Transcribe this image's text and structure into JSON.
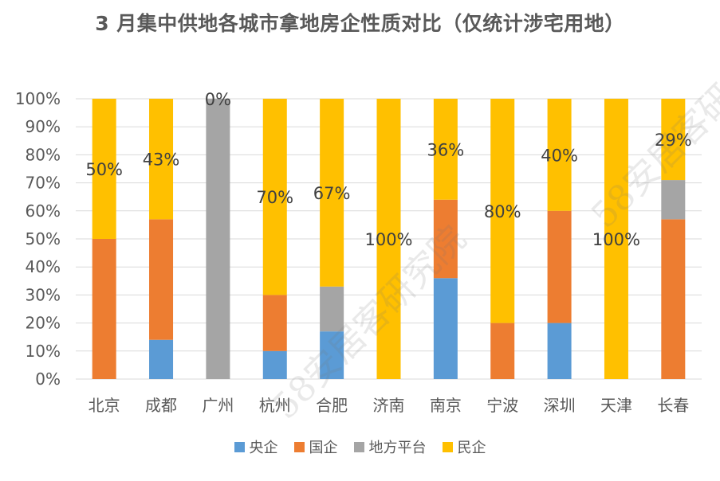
{
  "title": "3 月集中供地各城市拿地房企性质对比（仅统计涉宅用地）",
  "watermark": "58安居客研究院",
  "colors": {
    "central_soe": "#5B9BD5",
    "state_owned": "#ED7D31",
    "local_platform": "#A5A5A5",
    "private": "#FFC000",
    "axis_text": "#595959",
    "grid": "#D9D9D9"
  },
  "legend": [
    {
      "label": "央企",
      "color": "#5B9BD5"
    },
    {
      "label": "国企",
      "color": "#ED7D31"
    },
    {
      "label": "地方平台",
      "color": "#A5A5A5"
    },
    {
      "label": "民企",
      "color": "#FFC000"
    }
  ],
  "chart_data": {
    "type": "bar",
    "stacked": true,
    "categories": [
      "北京",
      "成都",
      "广州",
      "杭州",
      "合肥",
      "济南",
      "南京",
      "宁波",
      "深圳",
      "天津",
      "长春"
    ],
    "series": [
      {
        "name": "央企",
        "color": "#5B9BD5",
        "values": [
          0,
          14,
          0,
          10,
          17,
          0,
          36,
          0,
          20,
          0,
          0
        ]
      },
      {
        "name": "国企",
        "color": "#ED7D31",
        "values": [
          50,
          43,
          0,
          20,
          0,
          0,
          28,
          20,
          40,
          0,
          57
        ]
      },
      {
        "name": "地方平台",
        "color": "#A5A5A5",
        "values": [
          0,
          0,
          100,
          0,
          16,
          0,
          0,
          0,
          0,
          0,
          14
        ]
      },
      {
        "name": "民企",
        "color": "#FFC000",
        "values": [
          50,
          43,
          0,
          70,
          67,
          100,
          36,
          80,
          40,
          100,
          29
        ]
      }
    ],
    "data_labels": [
      "50%",
      "43%",
      "0%",
      "70%",
      "67%",
      "100%",
      "36%",
      "80%",
      "40%",
      "100%",
      "29%"
    ],
    "y_ticks": [
      "0%",
      "10%",
      "20%",
      "30%",
      "40%",
      "50%",
      "60%",
      "70%",
      "80%",
      "90%",
      "100%"
    ],
    "ylim": [
      0,
      100
    ],
    "grid": true,
    "legend_position": "bottom"
  }
}
